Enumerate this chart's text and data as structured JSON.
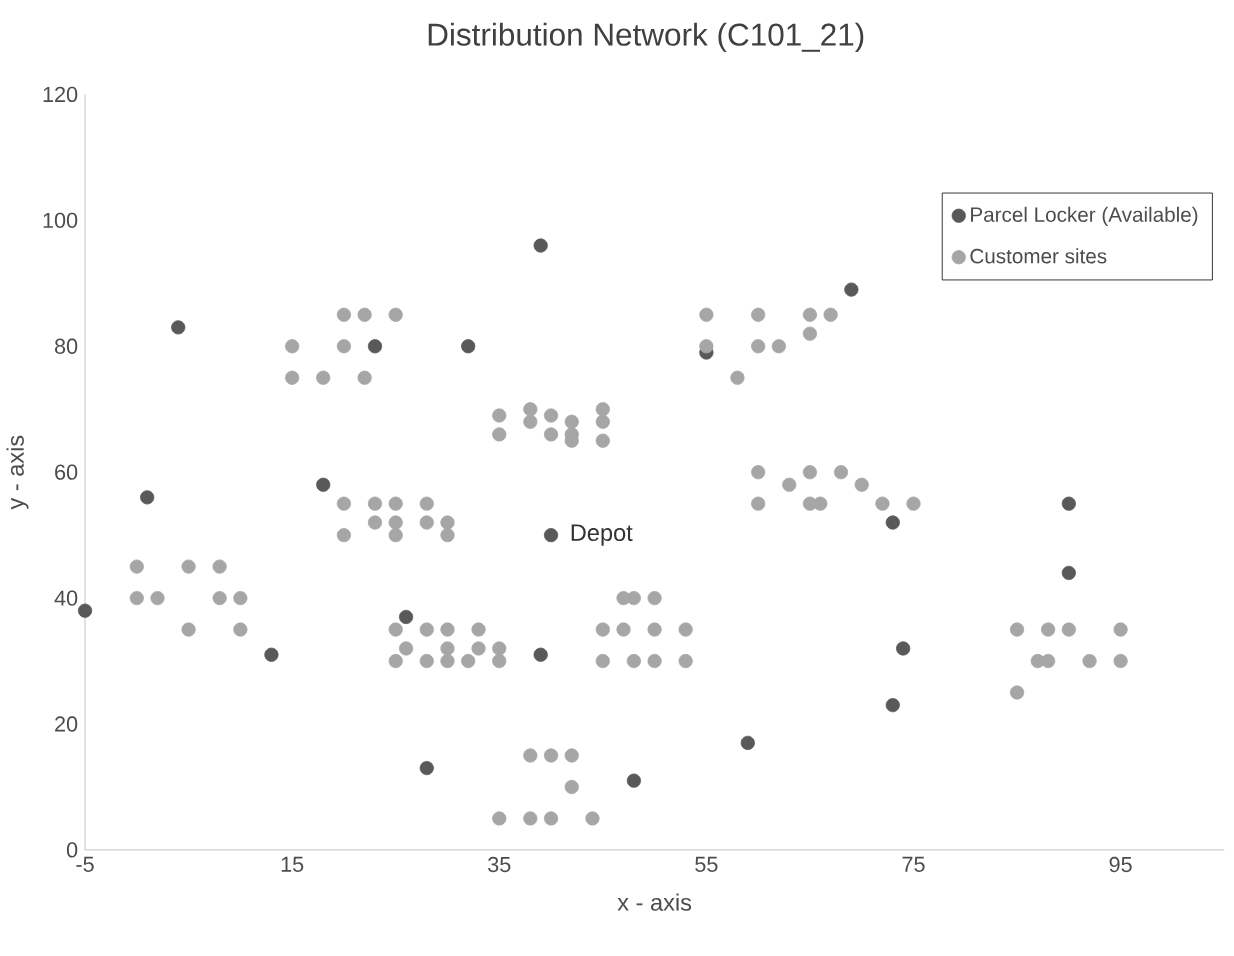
{
  "chart_data": {
    "type": "scatter",
    "title": "Distribution Network (C101_21)",
    "xlabel": "x - axis",
    "ylabel": "y - axis",
    "xlim": [
      -5,
      105
    ],
    "ylim": [
      0,
      120
    ],
    "xticks": [
      -5,
      15,
      35,
      55,
      75,
      95
    ],
    "yticks": [
      0,
      20,
      40,
      60,
      80,
      100,
      120
    ],
    "grid": false,
    "legend": "top right",
    "marker": "circle",
    "annotations": [
      {
        "text": "Depot",
        "x": 40,
        "y": 50
      }
    ],
    "series": [
      {
        "name": "Parcel Locker (Available)",
        "color": "#595959",
        "x": [
          -5,
          1,
          4,
          13,
          18,
          23,
          32,
          39,
          26,
          28,
          39,
          48,
          69,
          55,
          73,
          90,
          90,
          74,
          73,
          59
        ],
        "values": [
          38,
          56,
          83,
          31,
          58,
          80,
          80,
          96,
          37,
          13,
          31,
          11,
          89,
          79,
          52,
          55,
          44,
          32,
          23,
          17
        ]
      },
      {
        "name": "Customer sites",
        "color": "#a6a6a6",
        "x": [
          45,
          45,
          42,
          42,
          42,
          40,
          40,
          38,
          38,
          35,
          35,
          25,
          22,
          22,
          20,
          20,
          18,
          15,
          15,
          30,
          30,
          28,
          28,
          25,
          25,
          25,
          23,
          23,
          20,
          20,
          10,
          10,
          8,
          8,
          5,
          5,
          2,
          0,
          0,
          35,
          35,
          33,
          33,
          32,
          30,
          30,
          30,
          28,
          28,
          26,
          25,
          25,
          44,
          42,
          42,
          40,
          40,
          38,
          38,
          35,
          50,
          50,
          50,
          48,
          48,
          47,
          47,
          45,
          45,
          95,
          95,
          53,
          92,
          53,
          45,
          90,
          88,
          88,
          87,
          85,
          85,
          75,
          72,
          70,
          68,
          66,
          65,
          65,
          63,
          60,
          60,
          67,
          65,
          65,
          62,
          60,
          60,
          58,
          55,
          55
        ],
        "values": [
          68,
          70,
          66,
          68,
          65,
          69,
          66,
          68,
          70,
          66,
          69,
          85,
          75,
          85,
          80,
          85,
          75,
          75,
          80,
          50,
          52,
          52,
          55,
          50,
          52,
          55,
          52,
          55,
          50,
          55,
          35,
          40,
          40,
          45,
          35,
          45,
          40,
          40,
          45,
          30,
          32,
          32,
          35,
          30,
          30,
          32,
          35,
          30,
          35,
          32,
          30,
          35,
          5,
          10,
          15,
          5,
          15,
          5,
          15,
          5,
          30,
          35,
          40,
          30,
          40,
          35,
          40,
          30,
          35,
          30,
          35,
          30,
          30,
          35,
          65,
          35,
          30,
          35,
          30,
          25,
          35,
          55,
          55,
          58,
          60,
          55,
          55,
          60,
          58,
          55,
          60,
          85,
          85,
          82,
          80,
          80,
          85,
          75,
          80,
          85
        ]
      },
      {
        "color": "#595959",
        "x": [
          40
        ],
        "values": [
          50
        ]
      }
    ]
  }
}
